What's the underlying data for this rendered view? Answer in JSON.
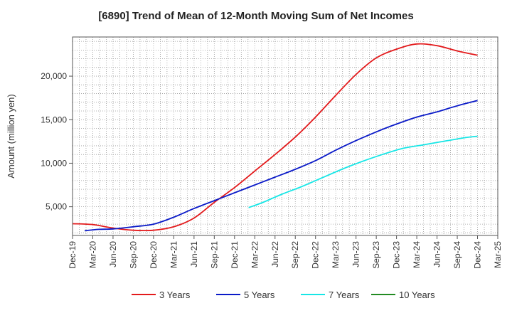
{
  "chart_data": {
    "type": "line",
    "title": "[6890]  Trend of Mean of 12-Month Moving Sum of Net Incomes",
    "ylabel": "Amount (million yen)",
    "xlabel": "",
    "ylim": [
      1700,
      24500
    ],
    "yticks": [
      5000,
      10000,
      15000,
      20000
    ],
    "ytick_labels": [
      "5,000",
      "10,000",
      "15,000",
      "20,000"
    ],
    "x_labels": [
      "Dec-19",
      "Mar-20",
      "Jun-20",
      "Sep-20",
      "Dec-20",
      "Mar-21",
      "Jun-21",
      "Sep-21",
      "Dec-21",
      "Mar-22",
      "Jun-22",
      "Sep-22",
      "Dec-22",
      "Mar-23",
      "Jun-23",
      "Sep-23",
      "Dec-23",
      "Mar-24",
      "Jun-24",
      "Sep-24",
      "Dec-24",
      "Mar-25"
    ],
    "grid": true,
    "legend_position": "bottom",
    "series": [
      {
        "name": "3 Years",
        "color": "#e31a1c",
        "start_index": 0,
        "values": [
          3050,
          2950,
          2550,
          2300,
          2300,
          2700,
          3700,
          5500,
          7200,
          9100,
          11000,
          13000,
          15300,
          17800,
          20200,
          22100,
          23100,
          23700,
          23500,
          22900,
          22400
        ]
      },
      {
        "name": "5 Years",
        "color": "#0a1ac8",
        "start_index": 0.6,
        "values": [
          2250,
          2400,
          2450,
          2700,
          3000,
          3800,
          4800,
          5700,
          6600,
          7500,
          8400,
          9300,
          10300,
          11500,
          12600,
          13600,
          14500,
          15300,
          15900,
          16600,
          17200
        ],
        "x_indices": [
          0.6,
          1.3,
          2.0,
          3.0,
          4.0,
          5.0,
          6.0,
          7.0,
          8.0,
          9.0,
          10.0,
          11.0,
          12.0,
          13.0,
          14.0,
          15.0,
          16.0,
          17.0,
          18.0,
          19.0,
          20.0
        ]
      },
      {
        "name": "7 Years",
        "color": "#17e6e6",
        "start_index": 8.7,
        "values": [
          4900,
          5500,
          6400,
          7300,
          8300,
          9300,
          10200,
          11000,
          11700,
          12100,
          12500,
          12900,
          13100
        ],
        "x_indices": [
          8.7,
          9.4,
          10.3,
          11.3,
          12.3,
          13.3,
          14.3,
          15.3,
          16.3,
          17.3,
          18.3,
          19.3,
          20.0
        ]
      },
      {
        "name": "10 Years",
        "color": "#228b22",
        "start_index": null,
        "values": []
      }
    ]
  }
}
